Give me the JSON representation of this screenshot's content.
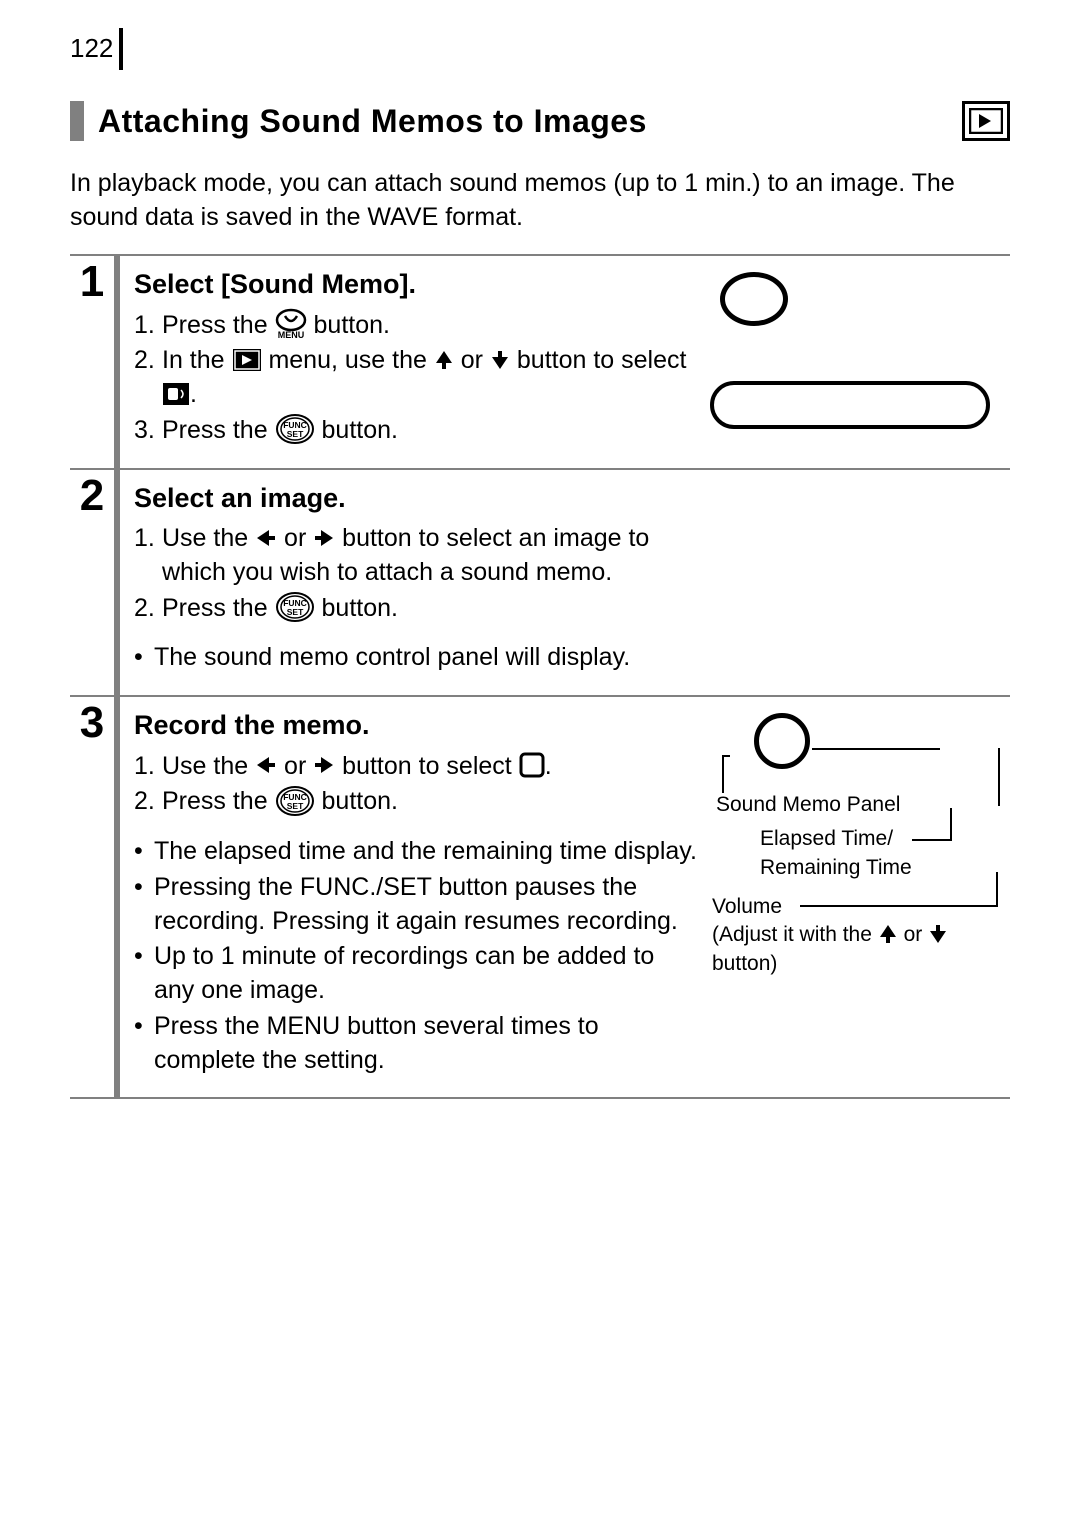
{
  "page_number": "122",
  "section_title": "Attaching Sound Memos to Images",
  "intro_text": "In playback mode, you can attach sound memos (up to 1 min.) to an image. The sound data is saved in the WAVE format.",
  "colors": {
    "accent_bar": "#808080",
    "rule": "#808080",
    "text": "#000000",
    "background": "#ffffff"
  },
  "icons": {
    "playback": "playback-icon",
    "menu_button": "menu-button-icon",
    "play_menu": "play-menu-icon",
    "arrow_up": "arrow-up-icon",
    "arrow_down": "arrow-down-icon",
    "arrow_left": "arrow-left-icon",
    "arrow_right": "arrow-right-icon",
    "sound_memo": "sound-memo-icon",
    "func_set": "func-set-icon",
    "record": "record-icon"
  },
  "steps": [
    {
      "number": "1",
      "heading": "Select [Sound Memo].",
      "sub": [
        {
          "n": "1.",
          "pre": "Press the ",
          "icon": "menu_button",
          "post": " button."
        },
        {
          "n": "2.",
          "pre": "In the ",
          "icon": "play_menu",
          "mid1": " menu, use the ",
          "icon2": "arrow_up",
          "mid2": " or ",
          "icon3": "arrow_down",
          "mid3": " button to select ",
          "icon4": "sound_memo",
          "post": "."
        },
        {
          "n": "3.",
          "pre": "Press the ",
          "icon": "func_set",
          "post": " button."
        }
      ],
      "bullets": [],
      "aside": "shapes1"
    },
    {
      "number": "2",
      "heading": "Select an image.",
      "sub": [
        {
          "n": "1.",
          "pre": "Use the ",
          "icon": "arrow_left",
          "mid1": " or ",
          "icon2": "arrow_right",
          "post": " button to select an image to which you wish to attach a sound memo."
        },
        {
          "n": "2.",
          "pre": "Press the ",
          "icon": "func_set",
          "post": " button."
        }
      ],
      "bullets": [
        "The sound memo control panel will display."
      ],
      "aside": "none"
    },
    {
      "number": "3",
      "heading": "Record the memo.",
      "sub": [
        {
          "n": "1.",
          "pre": "Use the ",
          "icon": "arrow_left",
          "mid1": " or ",
          "icon2": "arrow_right",
          "mid3": " button to select ",
          "icon4": "record",
          "post": "."
        },
        {
          "n": "2.",
          "pre": "Press the ",
          "icon": "func_set",
          "post": " button."
        }
      ],
      "bullets": [
        "The elapsed time and the remaining time display.",
        "Pressing the FUNC./SET button pauses the recording. Pressing it again resumes recording.",
        "Up to 1 minute of recordings can be added to any one image.",
        "Press the MENU button several times to complete the setting."
      ],
      "aside": "diagram"
    }
  ],
  "diagram": {
    "sound_memo_panel": "Sound Memo Panel",
    "elapsed_time": "Elapsed Time/",
    "remaining_time": "Remaining Time",
    "volume": "Volume",
    "adjust_pre": "(Adjust it with the ",
    "adjust_mid": " or ",
    "adjust_post": " button)"
  }
}
